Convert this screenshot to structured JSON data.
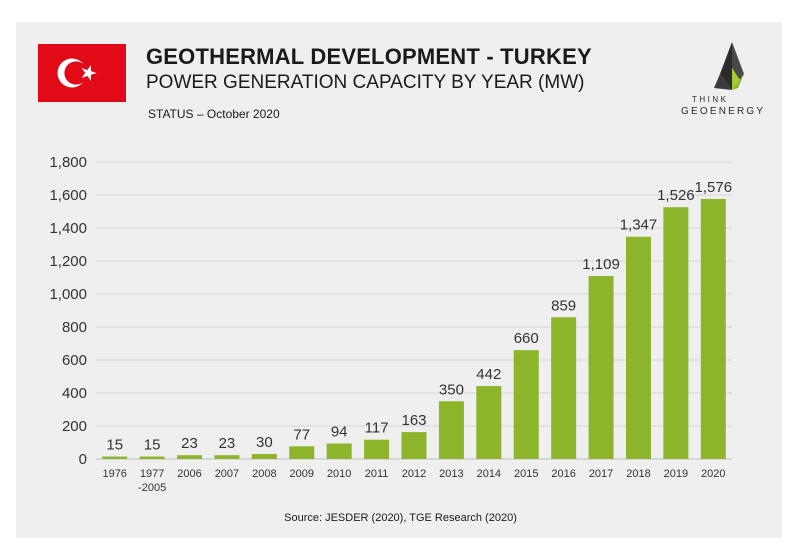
{
  "header": {
    "title": "GEOTHERMAL DEVELOPMENT - TURKEY",
    "subtitle": "POWER GENERATION CAPACITY BY YEAR (MW)",
    "status": "STATUS – October 2020",
    "source": "Source: JESDER (2020), TGE Research (2020)"
  },
  "logo": {
    "line1": "THINK",
    "line2": "GEOENERGY",
    "icon": "think-geoenergy-logo-icon"
  },
  "flag": {
    "icon": "turkey-flag-icon",
    "red": "#e30a17",
    "white": "#ffffff"
  },
  "chart_data": {
    "type": "bar",
    "categories": [
      [
        "1976"
      ],
      [
        "1977",
        "-2005"
      ],
      [
        "2006"
      ],
      [
        "2007"
      ],
      [
        "2008"
      ],
      [
        "2009"
      ],
      [
        "2010"
      ],
      [
        "2011"
      ],
      [
        "2012"
      ],
      [
        "2013"
      ],
      [
        "2014"
      ],
      [
        "2015"
      ],
      [
        "2016"
      ],
      [
        "2017"
      ],
      [
        "2018"
      ],
      [
        "2019"
      ],
      [
        "2020"
      ]
    ],
    "values": [
      15,
      15,
      23,
      23,
      30,
      77,
      94,
      117,
      163,
      350,
      442,
      660,
      859,
      1109,
      1347,
      1526,
      1576
    ],
    "value_labels": [
      "15",
      "15",
      "23",
      "23",
      "30",
      "77",
      "94",
      "117",
      "163",
      "350",
      "442",
      "660",
      "859",
      "1,109",
      "1,347",
      "1,526",
      "1,576"
    ],
    "ylim": [
      0,
      1800
    ],
    "yticks": [
      0,
      200,
      400,
      600,
      800,
      1000,
      1200,
      1400,
      1600,
      1800
    ],
    "ytick_labels": [
      "0",
      "200",
      "400",
      "600",
      "800",
      "1,000",
      "1,200",
      "1,400",
      "1,600",
      "1,800"
    ],
    "grid": true,
    "bar_color": "#8cb52b"
  }
}
